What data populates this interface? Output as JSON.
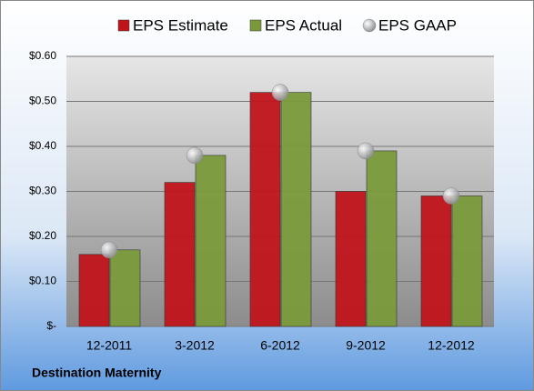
{
  "chart_data": {
    "type": "bar",
    "caption": "Destination Maternity",
    "categories": [
      "12-2011",
      "3-2012",
      "6-2012",
      "9-2012",
      "12-2012"
    ],
    "series": [
      {
        "name": "EPS Estimate",
        "color": "#c0141c",
        "values": [
          0.16,
          0.32,
          0.52,
          0.3,
          0.29
        ]
      },
      {
        "name": "EPS Actual",
        "color": "#7a9a3a",
        "values": [
          0.17,
          0.38,
          0.52,
          0.39,
          0.29
        ]
      },
      {
        "name": "EPS GAAP",
        "color": "#a8aab0",
        "type": "scatter",
        "values": [
          0.17,
          0.38,
          0.52,
          0.39,
          0.29
        ]
      }
    ],
    "ylim": [
      0,
      0.6
    ],
    "yticks": [
      {
        "value": 0,
        "label": "$-"
      },
      {
        "value": 0.1,
        "label": "$0.10"
      },
      {
        "value": 0.2,
        "label": "$0.20"
      },
      {
        "value": 0.3,
        "label": "$0.30"
      },
      {
        "value": 0.4,
        "label": "$0.40"
      },
      {
        "value": 0.5,
        "label": "$0.50"
      },
      {
        "value": 0.6,
        "label": "$0.60"
      }
    ],
    "grid": true
  }
}
